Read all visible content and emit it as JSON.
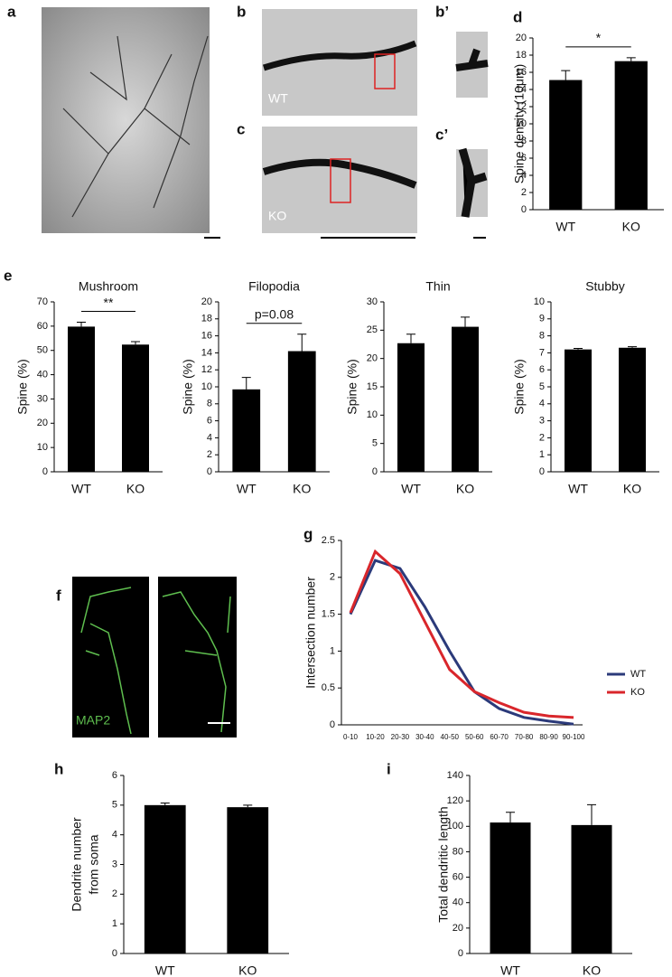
{
  "panels": {
    "a": "a",
    "b": "b",
    "b2": "b’",
    "c": "c",
    "c2": "c’",
    "d": "d",
    "e": "e",
    "f": "f",
    "g": "g",
    "h": "h",
    "i": "i"
  },
  "image_labels": {
    "wt": "WT",
    "ko": "KO",
    "map2": "MAP2"
  },
  "chart_data": [
    {
      "type": "bar",
      "ylabel": "Spine density (10μm)",
      "categories": [
        "WT",
        "KO"
      ],
      "values": [
        15.1,
        17.3
      ],
      "errors": [
        1.1,
        0.4
      ],
      "color": "#000000",
      "ylim": [
        0,
        20
      ],
      "yticks": [
        0,
        2,
        4,
        6,
        8,
        10,
        12,
        14,
        16,
        18,
        20
      ],
      "annotation": "*"
    },
    {
      "type": "bar",
      "title": "Mushroom",
      "ylabel": "Spine (%)",
      "categories": [
        "WT",
        "KO"
      ],
      "values": [
        59.8,
        52.4
      ],
      "errors": [
        1.8,
        1.2
      ],
      "color": "#000000",
      "ylim": [
        0,
        70
      ],
      "yticks": [
        0,
        10,
        20,
        30,
        40,
        50,
        60,
        70
      ],
      "annotation": "**"
    },
    {
      "type": "bar",
      "title": "Filopodia",
      "ylabel": "Spine (%)",
      "categories": [
        "WT",
        "KO"
      ],
      "values": [
        9.7,
        14.2
      ],
      "errors": [
        1.4,
        2.0
      ],
      "color": "#000000",
      "ylim": [
        0,
        20
      ],
      "yticks": [
        0,
        2,
        4,
        6,
        8,
        10,
        12,
        14,
        16,
        18,
        20
      ],
      "annotation": "p=0.08"
    },
    {
      "type": "bar",
      "title": "Thin",
      "ylabel": "Spine (%)",
      "categories": [
        "WT",
        "KO"
      ],
      "values": [
        22.7,
        25.6
      ],
      "errors": [
        1.6,
        1.7
      ],
      "color": "#000000",
      "ylim": [
        0,
        30
      ],
      "yticks": [
        0,
        5,
        10,
        15,
        20,
        25,
        30
      ]
    },
    {
      "type": "bar",
      "title": "Stubby",
      "ylabel": "Spine (%)",
      "categories": [
        "WT",
        "KO"
      ],
      "values": [
        7.2,
        7.3
      ],
      "errors": [
        0.06,
        0.06
      ],
      "color": "#000000",
      "ylim": [
        0,
        10
      ],
      "yticks": [
        0,
        1,
        2,
        3,
        4,
        5,
        6,
        7,
        8,
        9,
        10
      ]
    },
    {
      "type": "line",
      "ylabel": "Intersection number",
      "categories": [
        "0-10",
        "10-20",
        "20-30",
        "30-40",
        "40-50",
        "50-60",
        "60-70",
        "70-80",
        "80-90",
        "90-100"
      ],
      "series": [
        {
          "name": "WT",
          "color": "#2b3a7a",
          "values": [
            1.5,
            2.23,
            2.12,
            1.6,
            1.0,
            0.45,
            0.22,
            0.1,
            0.05,
            0.01
          ]
        },
        {
          "name": "KO",
          "color": "#d9262b",
          "values": [
            1.52,
            2.35,
            2.05,
            1.4,
            0.75,
            0.45,
            0.3,
            0.17,
            0.12,
            0.1
          ]
        }
      ],
      "ylim": [
        0,
        2.5
      ],
      "yticks": [
        0,
        0.5,
        1,
        1.5,
        2,
        2.5
      ],
      "legend": "right"
    },
    {
      "type": "bar",
      "ylabel": [
        "Dendrite number",
        "from soma"
      ],
      "categories": [
        "WT",
        "KO"
      ],
      "values": [
        5.0,
        4.93
      ],
      "errors": [
        0.07,
        0.07
      ],
      "color": "#000000",
      "ylim": [
        0,
        6
      ],
      "yticks": [
        0,
        1,
        2,
        3,
        4,
        5,
        6
      ]
    },
    {
      "type": "bar",
      "ylabel": "Total dendritic length",
      "categories": [
        "WT",
        "KO"
      ],
      "values": [
        103,
        101
      ],
      "errors": [
        8,
        16
      ],
      "color": "#000000",
      "ylim": [
        0,
        140
      ],
      "yticks": [
        0,
        20,
        40,
        60,
        80,
        100,
        120,
        140
      ]
    }
  ]
}
